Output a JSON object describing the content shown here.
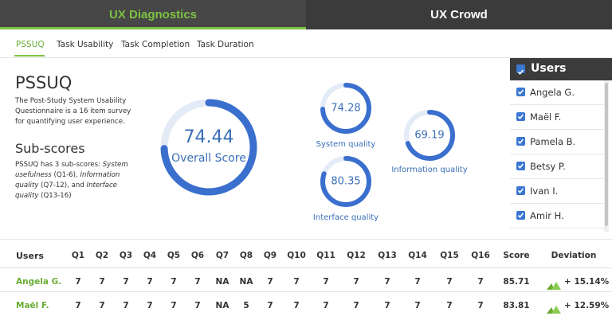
{
  "tabs": [
    "UX Diagnostics",
    "UX Crowd"
  ],
  "subtabs": [
    "PSSUQ",
    "Task Usability",
    "Task Completion",
    "Task Duration"
  ],
  "intro": {
    "title": "PSSUQ",
    "description": "The Post-Study System Usability Questionnaire is a 16 item survey for quantifying user experience."
  },
  "subscores": {
    "title": "Sub-scores",
    "parts": [
      "PSSUQ has 3 sub-scores: ",
      "System usefulness",
      " (Q1-6), ",
      "Information quality",
      " (Q7-12), and ",
      "Interface quality",
      " (Q13-16)"
    ]
  },
  "gauges": {
    "range": [
      0,
      100
    ],
    "items": [
      {
        "label": "Overall Score",
        "value": 74.44
      },
      {
        "label": "System quality",
        "value": 74.28
      },
      {
        "label": "Information quality",
        "value": 69.19
      },
      {
        "label": "Interface quality",
        "value": 80.35
      }
    ]
  },
  "users_panel": {
    "title": "Users",
    "users": [
      "Angela G.",
      "Maël F.",
      "Pamela B.",
      "Betsy P.",
      "Ivan I.",
      "Amir H."
    ]
  },
  "table": {
    "headers": [
      "Users",
      "Q1",
      "Q2",
      "Q3",
      "Q4",
      "Q5",
      "Q6",
      "Q7",
      "Q8",
      "Q9",
      "Q10",
      "Q11",
      "Q12",
      "Q13",
      "Q14",
      "Q15",
      "Q16",
      "Score",
      "Deviation"
    ],
    "rows": [
      [
        "Angela G.",
        7,
        7,
        7,
        7,
        7,
        7,
        "NA",
        "NA",
        7,
        7,
        7,
        7,
        7,
        7,
        7,
        7,
        85.71,
        "+ 15.14%"
      ],
      [
        "Maël F.",
        7,
        7,
        7,
        7,
        7,
        7,
        "NA",
        5,
        7,
        7,
        7,
        7,
        7,
        7,
        7,
        7,
        83.81,
        "+ 12.59%"
      ]
    ]
  }
}
